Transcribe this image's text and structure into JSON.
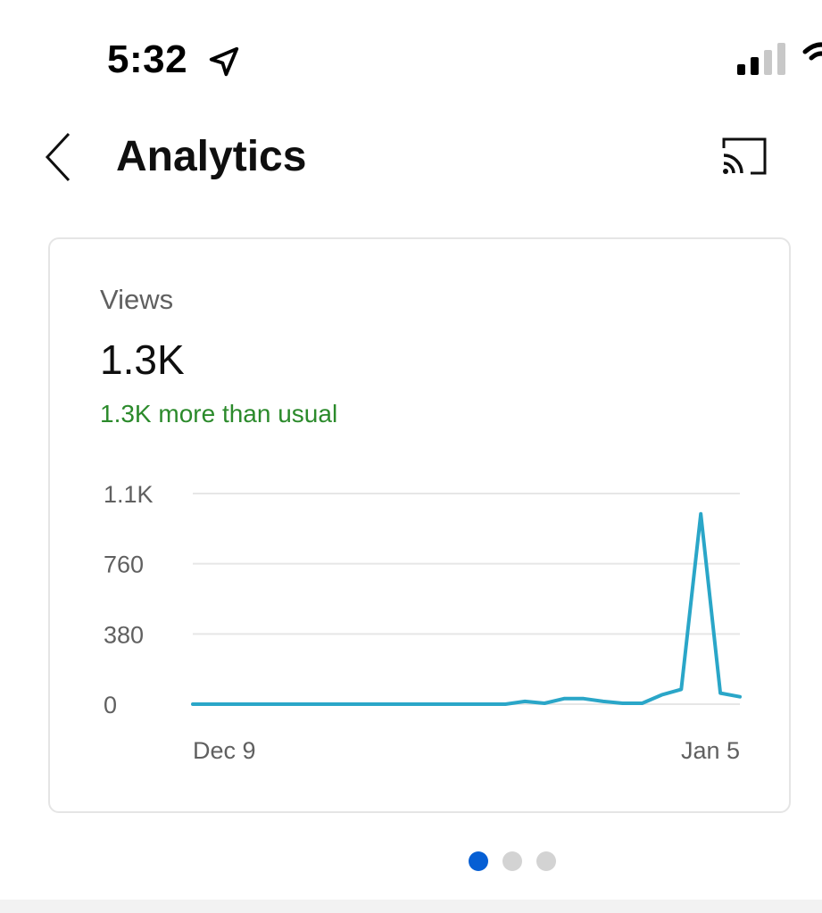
{
  "status_bar": {
    "time": "5:32",
    "icons": [
      "location-arrow-icon",
      "cellular-signal-icon",
      "wifi-icon"
    ]
  },
  "app_bar": {
    "title": "Analytics",
    "back_icon": "chevron-left-icon",
    "cast_icon": "cast-icon"
  },
  "card": {
    "metric_label": "Views",
    "metric_value": "1.3K",
    "metric_delta": "1.3K more than usual",
    "delta_color": "#2b8a2b"
  },
  "chart_data": {
    "type": "line",
    "y_ticks": [
      "1.1K",
      "760",
      "380",
      "0"
    ],
    "y_tick_values": [
      1140,
      760,
      380,
      0
    ],
    "x_tick_labels": [
      "Dec 9",
      "Jan 5"
    ],
    "ylim": [
      0,
      1140
    ],
    "grid": true,
    "line_color": "#2aa6c8",
    "series": [
      {
        "values": [
          0,
          0,
          0,
          0,
          0,
          0,
          0,
          0,
          0,
          0,
          0,
          0,
          0,
          0,
          0,
          0,
          0,
          15,
          5,
          30,
          30,
          15,
          5,
          5,
          50,
          80,
          1030,
          60,
          40
        ]
      }
    ]
  },
  "pagination": {
    "total": 3,
    "active_index": 0,
    "active_color": "#065fd4"
  }
}
